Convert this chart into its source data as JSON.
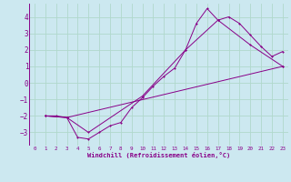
{
  "background_color": "#cce8f0",
  "grid_color": "#b0d8cc",
  "line_color": "#880088",
  "xlabel": "Windchill (Refroidissement éolien,°C)",
  "xlim": [
    -0.5,
    23.5
  ],
  "ylim": [
    -3.8,
    4.8
  ],
  "yticks": [
    -3,
    -2,
    -1,
    0,
    1,
    2,
    3,
    4
  ],
  "xticks": [
    0,
    1,
    2,
    3,
    4,
    5,
    6,
    7,
    8,
    9,
    10,
    11,
    12,
    13,
    14,
    15,
    16,
    17,
    18,
    19,
    20,
    21,
    22,
    23
  ],
  "series1_x": [
    1,
    2,
    3,
    4,
    5,
    6,
    7,
    8,
    9,
    10,
    11,
    12,
    13,
    14,
    15,
    16,
    17,
    18,
    19,
    20,
    21,
    22,
    23
  ],
  "series1_y": [
    -2.0,
    -2.0,
    -2.1,
    -3.3,
    -3.4,
    -3.0,
    -2.6,
    -2.4,
    -1.5,
    -0.9,
    -0.2,
    0.4,
    0.9,
    2.0,
    3.6,
    4.5,
    3.8,
    4.0,
    3.6,
    2.9,
    2.2,
    1.6,
    1.9
  ],
  "series2_x": [
    1,
    3,
    5,
    10,
    14,
    17,
    20,
    23
  ],
  "series2_y": [
    -2.0,
    -2.1,
    -3.0,
    -0.8,
    2.0,
    3.8,
    2.3,
    1.0
  ],
  "series3_x": [
    1,
    3,
    23
  ],
  "series3_y": [
    -2.0,
    -2.1,
    1.0
  ]
}
